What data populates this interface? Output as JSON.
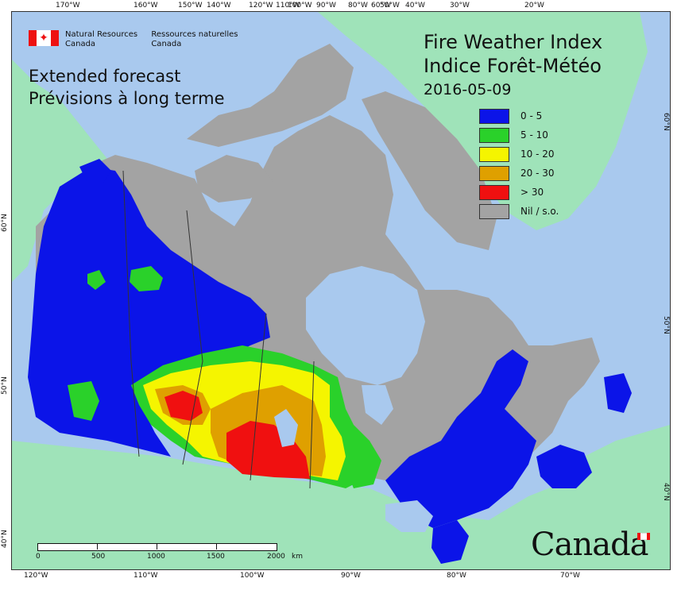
{
  "ministry": {
    "english_line1": "Natural Resources",
    "english_line2": "Canada",
    "french_line1": "Ressources naturelles",
    "french_line2": "Canada"
  },
  "subtitle": {
    "line1": "Extended forecast",
    "line2": "Prévisions à long terme"
  },
  "title": {
    "line1": "Fire Weather Index",
    "line2": "Indice Forêt-Météo",
    "date": "2016-05-09"
  },
  "legend": [
    {
      "label": "0 - 5",
      "color": "#0b14e8"
    },
    {
      "label": "5 - 10",
      "color": "#2ad12a"
    },
    {
      "label": "10 - 20",
      "color": "#f5f500"
    },
    {
      "label": "20 - 30",
      "color": "#dfa000"
    },
    {
      "label": "> 30",
      "color": "#f01010"
    },
    {
      "label": "Nil / s.o.",
      "color": "#a3a3a3"
    }
  ],
  "colors": {
    "ocean": "#a9c9ee",
    "land_other": "#9fe3b9",
    "lakes": "#a9c9ee"
  },
  "graticule": {
    "top": [
      "170°W",
      "160°W",
      "150°W",
      "140°W",
      "120°W",
      "110°W",
      "100°W",
      "90°W",
      "80°W",
      "60°W",
      "50°W",
      "40°W",
      "30°W",
      "20°W"
    ],
    "bottom": [
      "120°W",
      "110°W",
      "100°W",
      "90°W",
      "80°W",
      "70°W"
    ],
    "left": [
      "60°N",
      "50°N",
      "40°N"
    ],
    "right": [
      "60°N",
      "50°N",
      "40°N"
    ]
  },
  "scalebar": {
    "labels": [
      "0",
      "500",
      "1000",
      "1500",
      "2000"
    ],
    "unit": "km"
  },
  "wordmark": "Canada"
}
